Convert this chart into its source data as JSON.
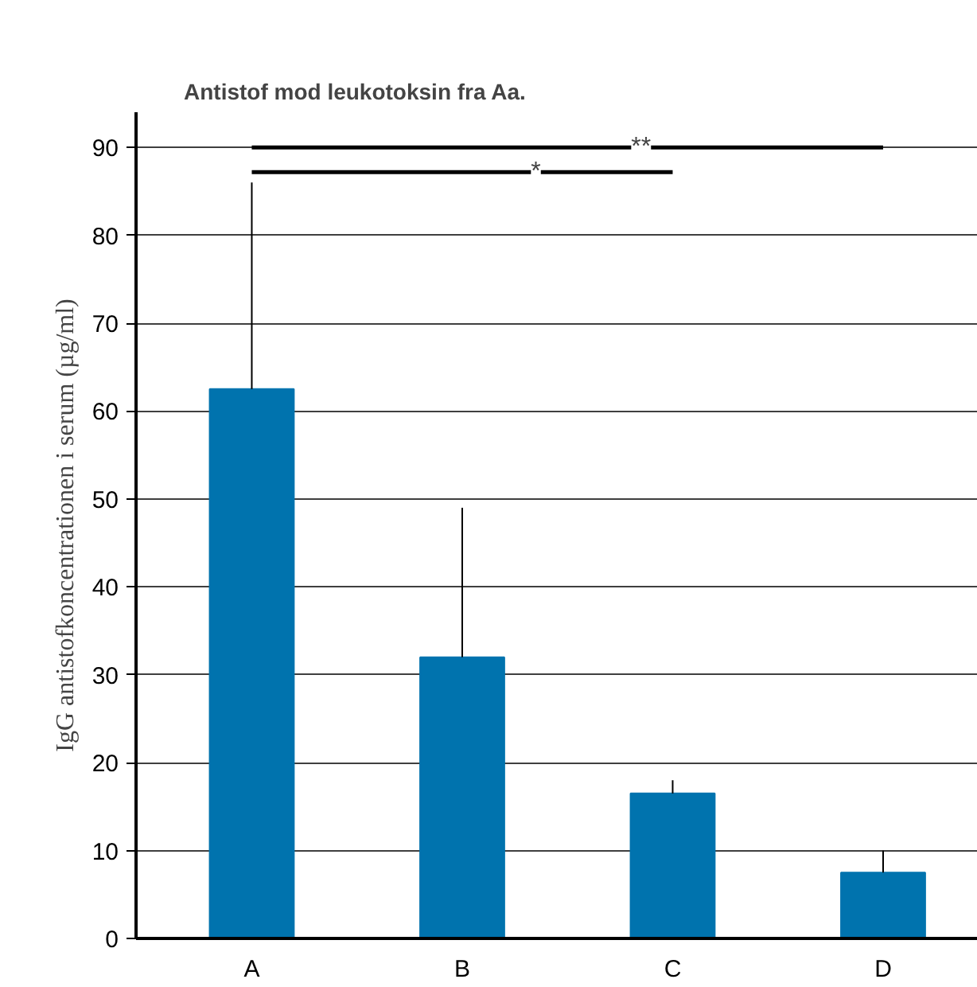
{
  "chart_data": {
    "type": "bar",
    "title": "Antistof mod leukotoksin fra Aa.",
    "ylabel": "IgG antistofkoncentrationen i serum (µg/ml)",
    "categories": [
      "A",
      "B",
      "C",
      "D"
    ],
    "values": [
      62.5,
      32,
      16.5,
      7.5
    ],
    "errors": [
      [
        62.5,
        86
      ],
      [
        32,
        49
      ],
      [
        16.5,
        18
      ],
      [
        7.5,
        10
      ]
    ],
    "color": "#0073ae",
    "ylim": [
      0,
      94
    ],
    "yticks": [
      0,
      10,
      20,
      30,
      40,
      50,
      60,
      70,
      80,
      90
    ],
    "grid": "y",
    "annotations": [
      "**",
      "*"
    ]
  }
}
